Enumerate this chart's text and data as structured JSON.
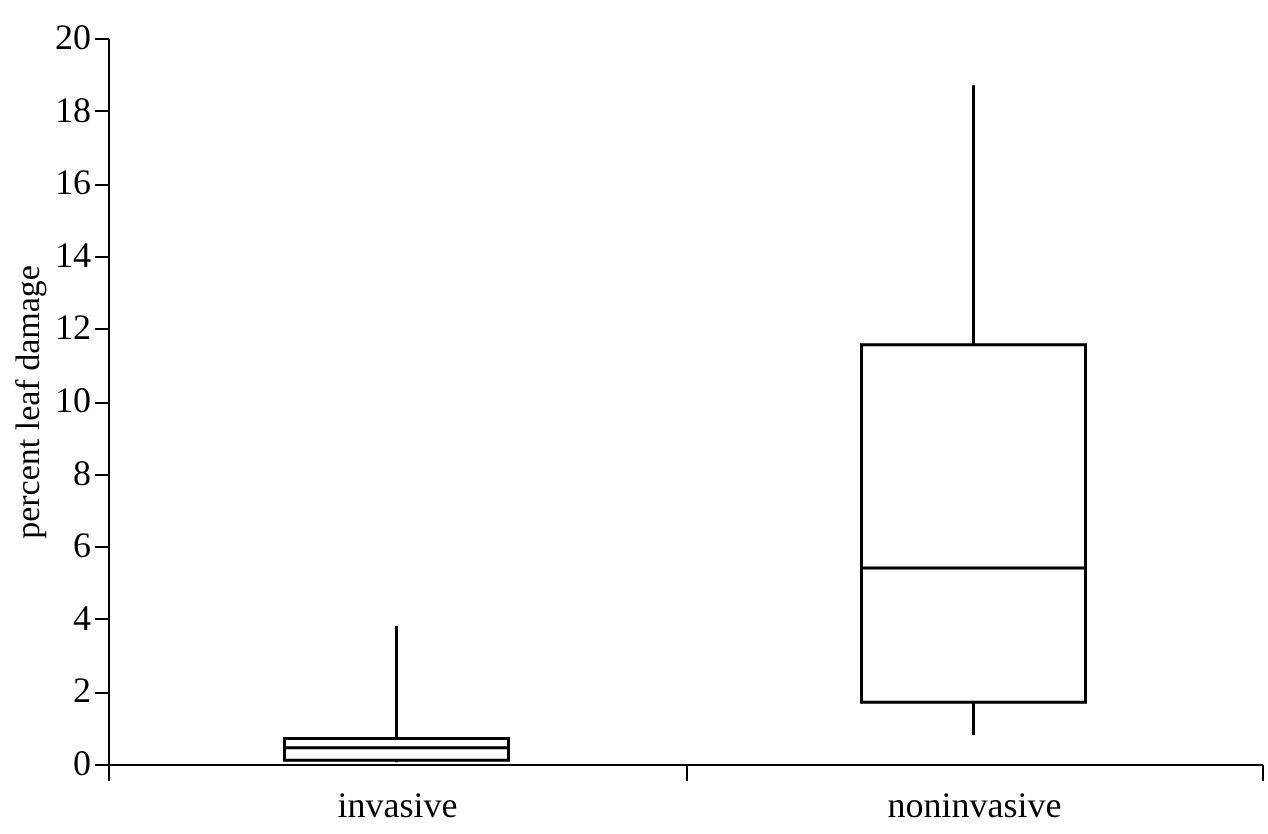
{
  "chart_data": {
    "type": "box",
    "ylabel": "percent leaf damage",
    "categories": [
      "invasive",
      "noninvasive"
    ],
    "boxes": [
      {
        "low": 0.05,
        "q1": 0.1,
        "median": 0.45,
        "q3": 0.7,
        "high": 3.8
      },
      {
        "low": 0.8,
        "q1": 1.7,
        "median": 5.4,
        "q3": 11.55,
        "high": 18.7
      }
    ],
    "ylim": [
      0,
      20
    ],
    "yticks": [
      0,
      2,
      4,
      6,
      8,
      10,
      12,
      14,
      16,
      18,
      20
    ],
    "grid": false
  }
}
